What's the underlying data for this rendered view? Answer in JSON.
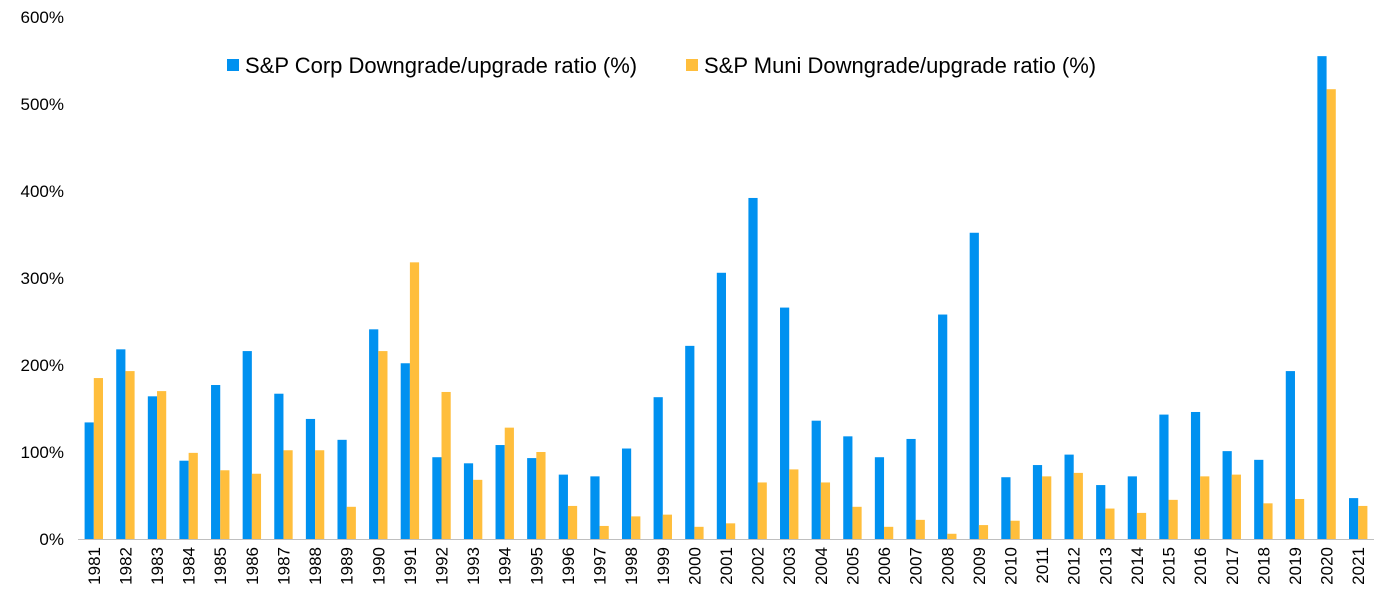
{
  "chart_data": {
    "type": "bar",
    "categories": [
      "1981",
      "1982",
      "1983",
      "1984",
      "1985",
      "1986",
      "1987",
      "1988",
      "1989",
      "1990",
      "1991",
      "1992",
      "1993",
      "1994",
      "1995",
      "1996",
      "1997",
      "1998",
      "1999",
      "2000",
      "2001",
      "2002",
      "2003",
      "2004",
      "2005",
      "2006",
      "2007",
      "2008",
      "2009",
      "2010",
      "2011",
      "2012",
      "2013",
      "2014",
      "2015",
      "2016",
      "2017",
      "2018",
      "2019",
      "2020",
      "2021"
    ],
    "series": [
      {
        "name": "S&P Corp Downgrade/upgrade ratio (%)",
        "color": "#0091F0",
        "values": [
          134,
          218,
          164,
          90,
          177,
          216,
          167,
          138,
          114,
          241,
          202,
          94,
          87,
          108,
          93,
          74,
          72,
          104,
          163,
          222,
          306,
          392,
          266,
          136,
          118,
          94,
          115,
          258,
          352,
          71,
          85,
          97,
          62,
          72,
          143,
          146,
          101,
          91,
          193,
          555,
          47
        ]
      },
      {
        "name": "S&P Muni Downgrade/upgrade ratio (%)",
        "color": "#FFBE3C",
        "values": [
          185,
          193,
          170,
          99,
          79,
          75,
          102,
          102,
          37,
          216,
          318,
          169,
          68,
          128,
          100,
          38,
          15,
          26,
          28,
          14,
          18,
          65,
          80,
          65,
          37,
          14,
          22,
          6,
          16,
          21,
          72,
          76,
          35,
          30,
          45,
          72,
          74,
          41,
          46,
          517,
          38
        ]
      }
    ],
    "y_ticks": [
      "0%",
      "100%",
      "200%",
      "300%",
      "400%",
      "500%",
      "600%"
    ],
    "ylim": [
      0,
      600
    ],
    "title": "",
    "xlabel": "",
    "ylabel": "",
    "grid": false,
    "legend_position": "top-center"
  }
}
